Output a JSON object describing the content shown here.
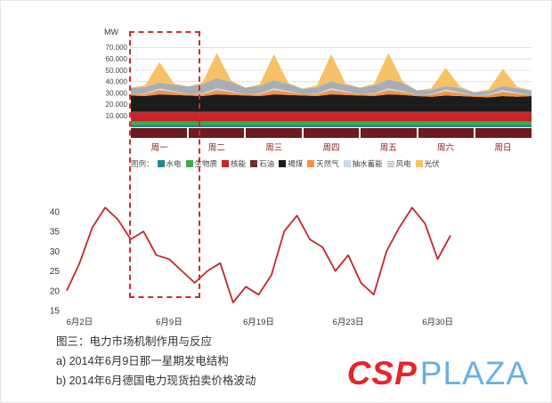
{
  "caption": {
    "title": "图三：电力市场机制作用与反应",
    "a": "a) 2014年6月9日那一星期发电结构",
    "b": "b) 2014年6月德国电力现货拍卖价格波动"
  },
  "logo": {
    "csp": "CSP",
    "plaza": "PLAZA"
  },
  "chart_data": [
    {
      "type": "area",
      "title": "2014年6月9日那一星期发电结构",
      "unit_label": "MW",
      "ylim": [
        0,
        75000
      ],
      "y_ticks": [
        {
          "value": 70000,
          "label": "70.000"
        },
        {
          "value": 60000,
          "label": "60.000"
        },
        {
          "value": 50000,
          "label": "50.000"
        },
        {
          "value": 40000,
          "label": "40.000"
        },
        {
          "value": 30000,
          "label": "30.000"
        },
        {
          "value": 20000,
          "label": "20.000"
        },
        {
          "value": 10000,
          "label": "10.000"
        }
      ],
      "x_day_labels": [
        "周一",
        "周二",
        "周三",
        "周四",
        "周五",
        "周六",
        "周日"
      ],
      "legend": {
        "title": "图例：",
        "items": [
          {
            "label": "水电",
            "color": "#1f8a8c"
          },
          {
            "label": "生物质",
            "color": "#3faa49"
          },
          {
            "label": "核能",
            "color": "#cc2229"
          },
          {
            "label": "石油",
            "color": "#6b2d2d"
          },
          {
            "label": "褐煤",
            "color": "#1c1c1c"
          },
          {
            "label": "天然气",
            "color": "#f5923e"
          },
          {
            "label": "抽水蓄能",
            "color": "#cdd9e5"
          },
          {
            "label": "风电",
            "color": "#a7adb3",
            "pattern": "stripes"
          },
          {
            "label": "光伏",
            "color": "#f7c168"
          }
        ]
      },
      "series": [
        {
          "name": "水电",
          "color": "#1f8a8c",
          "values": [
            2000,
            2000,
            2000,
            2000,
            2000,
            2000,
            2000,
            2000,
            2000,
            2000,
            2000,
            2000,
            2000,
            2000,
            2000,
            2000,
            2000,
            2000,
            2000,
            2000,
            2000,
            2000,
            2000,
            2000,
            2000,
            2000,
            2000,
            2000,
            2000
          ]
        },
        {
          "name": "生物质",
          "color": "#3faa49",
          "values": [
            3000,
            3000,
            3000,
            3000,
            3000,
            3000,
            3000,
            3000,
            3000,
            3000,
            3000,
            3000,
            3000,
            3000,
            3000,
            3000,
            3000,
            3000,
            3000,
            3000,
            3000,
            3000,
            3000,
            3000,
            3000,
            3000,
            3000,
            3000,
            3000
          ]
        },
        {
          "name": "核能",
          "color": "#cc2229",
          "values": [
            8000,
            8000,
            8000,
            8000,
            8000,
            8000,
            8000,
            8000,
            8000,
            8000,
            8000,
            8000,
            8000,
            8000,
            8000,
            8000,
            8000,
            8000,
            8000,
            8000,
            8000,
            8000,
            8000,
            8000,
            8000,
            8000,
            8000,
            8000,
            8000
          ]
        },
        {
          "name": "石油",
          "color": "#6b2d2d",
          "values": [
            800,
            800,
            800,
            800,
            800,
            800,
            800,
            800,
            800,
            800,
            800,
            800,
            800,
            800,
            800,
            800,
            800,
            800,
            800,
            800,
            800,
            800,
            800,
            800,
            800,
            800,
            800,
            800,
            800
          ]
        },
        {
          "name": "褐煤",
          "color": "#1c1c1c",
          "values": [
            14000,
            13500,
            15000,
            14500,
            14000,
            13500,
            15000,
            14500,
            14000,
            13500,
            15000,
            14500,
            14000,
            13500,
            15000,
            14500,
            14000,
            13500,
            15000,
            14500,
            13500,
            13000,
            14000,
            13500,
            13000,
            12500,
            13500,
            13000,
            13500
          ]
        },
        {
          "name": "天然气",
          "color": "#f5923e",
          "values": [
            1000,
            1800,
            3800,
            2600,
            1000,
            1800,
            3800,
            2600,
            1000,
            1800,
            3800,
            2600,
            1000,
            1800,
            3800,
            2600,
            1000,
            1800,
            3800,
            2600,
            1000,
            1800,
            3800,
            2600,
            1000,
            1800,
            3800,
            2600,
            1000
          ]
        },
        {
          "name": "抽水蓄能",
          "color": "#cdd9e5",
          "values": [
            0,
            600,
            1600,
            900,
            0,
            600,
            1600,
            900,
            0,
            600,
            1600,
            900,
            0,
            600,
            1600,
            900,
            0,
            600,
            1600,
            900,
            0,
            600,
            1600,
            900,
            0,
            600,
            1600,
            900,
            0
          ]
        },
        {
          "name": "风电",
          "color": "#a7adb3",
          "values": [
            6000,
            5500,
            5000,
            5500,
            7000,
            8000,
            9000,
            8000,
            6000,
            6500,
            7000,
            6000,
            5000,
            5500,
            6000,
            5500,
            6000,
            7000,
            8000,
            7000,
            4000,
            3500,
            3000,
            3500,
            3000,
            3000,
            3500,
            4000,
            4000
          ]
        },
        {
          "name": "光伏",
          "color": "#f7c168",
          "values": [
            0,
            1500,
            18000,
            1200,
            0,
            1500,
            22000,
            1200,
            0,
            1500,
            23000,
            1200,
            0,
            1500,
            24000,
            1200,
            0,
            1500,
            23000,
            1200,
            0,
            1500,
            16000,
            1200,
            0,
            1500,
            15000,
            1200,
            0
          ]
        }
      ]
    },
    {
      "type": "line",
      "title": "2014年6月德国电力现货拍卖价格波动",
      "color": "#c1272d",
      "ylim": [
        15,
        42
      ],
      "y_ticks": [
        40,
        35,
        30,
        25,
        20,
        15
      ],
      "x_ticks": [
        {
          "index": 1,
          "label": "6月2日"
        },
        {
          "index": 8,
          "label": "6月9日"
        },
        {
          "index": 15,
          "label": "6月19日"
        },
        {
          "index": 22,
          "label": "6月23日"
        },
        {
          "index": 29,
          "label": "6月30日"
        }
      ],
      "values": [
        20,
        27,
        36,
        41,
        38,
        33,
        35,
        29,
        28,
        25,
        22,
        25,
        27,
        17,
        21,
        19,
        24,
        35,
        39,
        33,
        31,
        25,
        29,
        22,
        19,
        30,
        36,
        41,
        37,
        28,
        34
      ]
    }
  ]
}
